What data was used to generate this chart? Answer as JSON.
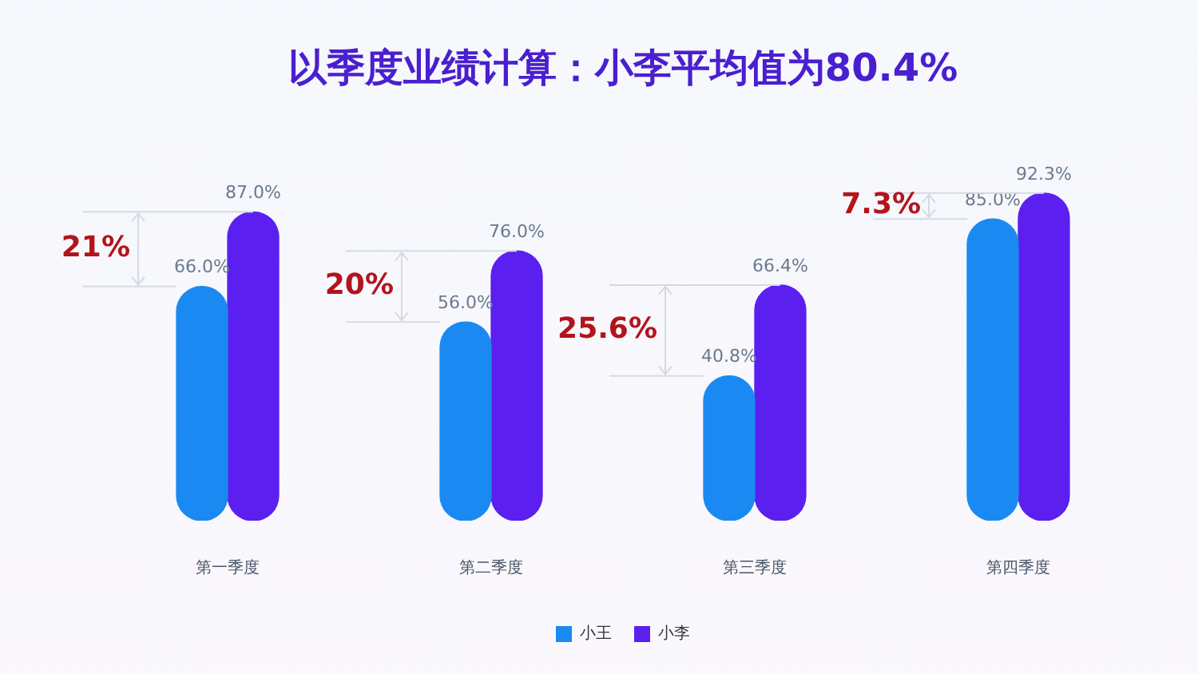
{
  "chart_data": {
    "type": "bar",
    "title": "以季度业绩计算：小李平均值为80.4%",
    "categories": [
      "第一季度",
      "第二季度",
      "第三季度",
      "第四季度"
    ],
    "series": [
      {
        "name": "小王",
        "color": "#1a8af2",
        "values": [
          66.0,
          56.0,
          40.8,
          85.0
        ],
        "value_labels": [
          "66.0%",
          "56.0%",
          "40.8%",
          "85.0%"
        ]
      },
      {
        "name": "小李",
        "color": "#5b1ff0",
        "values": [
          87.0,
          76.0,
          66.4,
          92.3
        ],
        "value_labels": [
          "87.0%",
          "76.0%",
          "66.4%",
          "92.3%"
        ]
      }
    ],
    "tick_labels": "x",
    "grid": false,
    "legend": "bottom",
    "annotations": [
      "21%",
      "20%",
      "25.6%",
      "7.3%"
    ]
  }
}
